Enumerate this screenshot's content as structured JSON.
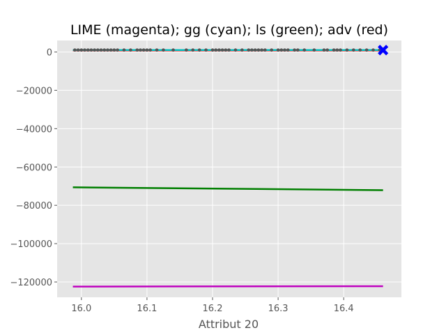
{
  "chart_data": {
    "type": "line",
    "title": "LIME (magenta); gg (cyan); ls (green); adv (red)",
    "xlabel": "Attribut 20",
    "ylabel": "",
    "xlim": [
      15.963,
      16.488
    ],
    "ylim": [
      -128000,
      6000
    ],
    "xticks": [
      16.0,
      16.1,
      16.2,
      16.3,
      16.4
    ],
    "xtick_labels": [
      "16.0",
      "16.1",
      "16.2",
      "16.3",
      "16.4"
    ],
    "yticks": [
      0,
      -20000,
      -40000,
      -60000,
      -80000,
      -100000,
      -120000
    ],
    "ytick_labels": [
      "0",
      "−20000",
      "−40000",
      "−60000",
      "−80000",
      "−100000",
      "−120000"
    ],
    "grid": true,
    "background": "#e5e5e5",
    "series": [
      {
        "name": "LIME",
        "color": "#bf00bf",
        "x": [
          15.987,
          16.46
        ],
        "y": [
          -122400,
          -122200
        ]
      },
      {
        "name": "gg",
        "color": "#00bfbf",
        "x": [
          15.987,
          16.46
        ],
        "y": [
          1000,
          1000
        ]
      },
      {
        "name": "ls",
        "color": "#007f00",
        "x": [
          15.987,
          16.46
        ],
        "y": [
          -70600,
          -72100
        ]
      },
      {
        "name": "adv",
        "color": "#ff0000",
        "x": [
          15.987,
          16.46
        ],
        "y": [
          800,
          800
        ]
      }
    ],
    "scatter": {
      "color": "#555555",
      "y": 1000,
      "x": [
        15.99,
        15.995,
        16.0,
        16.005,
        16.01,
        16.015,
        16.02,
        16.025,
        16.03,
        16.035,
        16.04,
        16.045,
        16.05,
        16.055,
        16.065,
        16.075,
        16.085,
        16.09,
        16.095,
        16.1,
        16.105,
        16.115,
        16.125,
        16.14,
        16.16,
        16.17,
        16.18,
        16.19,
        16.2,
        16.205,
        16.21,
        16.215,
        16.22,
        16.225,
        16.235,
        16.245,
        16.255,
        16.26,
        16.265,
        16.27,
        16.275,
        16.28,
        16.29,
        16.3,
        16.305,
        16.31,
        16.315,
        16.325,
        16.33,
        16.34,
        16.355,
        16.37,
        16.375,
        16.385,
        16.39,
        16.395,
        16.405,
        16.415,
        16.425,
        16.435,
        16.445,
        16.455
      ]
    },
    "highlight": {
      "color": "#0000ff",
      "marker": "X",
      "x": 16.46,
      "y": 1000
    }
  }
}
